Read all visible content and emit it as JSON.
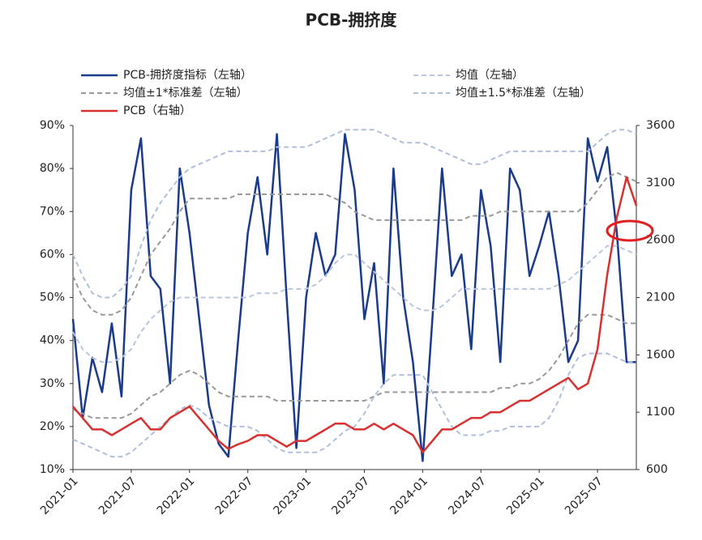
{
  "chart_data": {
    "type": "line",
    "title": "PCB-拥挤度",
    "categories": [
      "2021-01",
      null,
      null,
      null,
      null,
      null,
      "2021-07",
      null,
      null,
      null,
      null,
      null,
      "2022-01",
      null,
      null,
      null,
      null,
      null,
      "2022-07",
      null,
      null,
      null,
      null,
      null,
      "2023-01",
      null,
      null,
      null,
      null,
      null,
      "2023-07",
      null,
      null,
      null,
      null,
      null,
      "2024-01",
      null,
      null,
      null,
      null,
      null,
      "2024-07",
      null,
      null,
      null,
      null,
      null,
      "2025-01",
      null,
      null,
      null,
      null,
      null,
      "2025-07",
      null,
      null,
      null,
      null
    ],
    "series": [
      {
        "name": "PCB-拥挤度指标（左轴）",
        "color": "#1a3a8c",
        "dash": false,
        "values": [
          45,
          22,
          36,
          28,
          44,
          27,
          75,
          87,
          55,
          52,
          30,
          80,
          65,
          45,
          25,
          16,
          13,
          40,
          65,
          78,
          60,
          88,
          50,
          15,
          50,
          65,
          55,
          60,
          88,
          75,
          45,
          58,
          30,
          80,
          50,
          35,
          12,
          45,
          80,
          55,
          60,
          38,
          75,
          62,
          35,
          80,
          75,
          55,
          62,
          70,
          55,
          35,
          40,
          87,
          77,
          85,
          65,
          35,
          35
        ]
      },
      {
        "name": "均值（左轴）",
        "color": "#b9c7de",
        "dash": true,
        "values": [
          42,
          38,
          36,
          35,
          35,
          36,
          38,
          42,
          45,
          47,
          49,
          50,
          50,
          50,
          50,
          50,
          50,
          50,
          50,
          51,
          51,
          51,
          52,
          52,
          52,
          53,
          55,
          58,
          60,
          60,
          58,
          56,
          54,
          52,
          50,
          48,
          47,
          47,
          48,
          50,
          52,
          52,
          52,
          52,
          52,
          52,
          52,
          52,
          52,
          52,
          53,
          54,
          56,
          58,
          60,
          62,
          62,
          61,
          60
        ]
      },
      {
        "name": "均值±1*标准差（左轴）",
        "color": "#999999",
        "dash": true,
        "upper": [
          55,
          50,
          47,
          46,
          46,
          47,
          50,
          55,
          60,
          63,
          66,
          70,
          73,
          73,
          73,
          73,
          73,
          74,
          74,
          74,
          74,
          74,
          74,
          74,
          74,
          74,
          74,
          73,
          72,
          70,
          69,
          68,
          68,
          68,
          68,
          68,
          68,
          68,
          68,
          68,
          68,
          69,
          69,
          69,
          70,
          70,
          70,
          70,
          70,
          70,
          70,
          70,
          70,
          72,
          75,
          78,
          79,
          78,
          77
        ],
        "lower": [
          24,
          23,
          22,
          22,
          22,
          22,
          23,
          25,
          27,
          28,
          30,
          32,
          33,
          32,
          30,
          28,
          27,
          27,
          27,
          27,
          27,
          26,
          26,
          26,
          26,
          26,
          26,
          26,
          26,
          26,
          26,
          27,
          28,
          28,
          28,
          28,
          28,
          28,
          28,
          28,
          28,
          28,
          28,
          28,
          29,
          29,
          30,
          30,
          31,
          33,
          36,
          40,
          44,
          46,
          46,
          46,
          45,
          44,
          44
        ]
      },
      {
        "name": "均值±1.5*标准差（左轴）",
        "color": "#b0bfdc",
        "dash": true,
        "upper": [
          60,
          55,
          51,
          50,
          50,
          52,
          55,
          62,
          68,
          72,
          75,
          78,
          80,
          81,
          82,
          83,
          84,
          84,
          84,
          84,
          84,
          85,
          85,
          85,
          85,
          86,
          87,
          88,
          89,
          89,
          89,
          89,
          88,
          87,
          86,
          86,
          86,
          85,
          84,
          83,
          82,
          81,
          81,
          82,
          83,
          84,
          84,
          84,
          84,
          84,
          84,
          84,
          84,
          84,
          86,
          88,
          89,
          89,
          88
        ],
        "lower": [
          17,
          16,
          15,
          14,
          13,
          13,
          14,
          16,
          18,
          20,
          22,
          24,
          25,
          24,
          22,
          21,
          20,
          20,
          20,
          19,
          17,
          15,
          14,
          14,
          14,
          14,
          15,
          17,
          19,
          20,
          23,
          27,
          30,
          32,
          32,
          32,
          32,
          28,
          24,
          20,
          18,
          18,
          18,
          19,
          19,
          20,
          20,
          20,
          20,
          22,
          26,
          32,
          36,
          37,
          37,
          37,
          36,
          35,
          35
        ]
      },
      {
        "name": "PCB（右轴）",
        "color": "#d93030",
        "dash": false,
        "axis": "y2",
        "values": [
          1150,
          1050,
          950,
          950,
          900,
          950,
          1000,
          1050,
          950,
          950,
          1050,
          1100,
          1150,
          1050,
          950,
          850,
          780,
          820,
          850,
          900,
          900,
          850,
          800,
          850,
          850,
          900,
          950,
          1000,
          1000,
          950,
          950,
          1000,
          950,
          1000,
          950,
          900,
          750,
          850,
          950,
          950,
          1000,
          1050,
          1050,
          1100,
          1100,
          1150,
          1200,
          1200,
          1250,
          1300,
          1350,
          1400,
          1300,
          1350,
          1650,
          2300,
          2800,
          3150,
          2900
        ]
      }
    ],
    "ylim": [
      10,
      90
    ],
    "yticks": [
      {
        "value": 10,
        "label": "10%"
      },
      {
        "value": 20,
        "label": "20%"
      },
      {
        "value": 30,
        "label": "30%"
      },
      {
        "value": 40,
        "label": "40%"
      },
      {
        "value": 50,
        "label": "50%"
      },
      {
        "value": 60,
        "label": "60%"
      },
      {
        "value": 70,
        "label": "70%"
      },
      {
        "value": 80,
        "label": "80%"
      },
      {
        "value": 90,
        "label": "90%"
      }
    ],
    "y2lim": [
      600,
      3600
    ],
    "y2ticks": [
      600,
      1100,
      1600,
      2100,
      2600,
      3100,
      3600
    ]
  }
}
